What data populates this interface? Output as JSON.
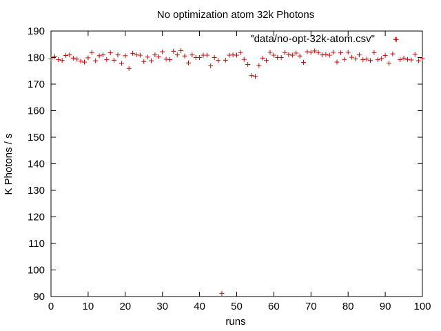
{
  "chart_data": {
    "type": "scatter",
    "title": "No optimization atom 32k Photons",
    "xlabel": "runs",
    "ylabel": "K Photons / s",
    "xlim": [
      0,
      100
    ],
    "ylim": [
      90,
      190
    ],
    "xticks": [
      0,
      10,
      20,
      30,
      40,
      50,
      60,
      70,
      80,
      90,
      100
    ],
    "yticks": [
      90,
      100,
      110,
      120,
      130,
      140,
      150,
      160,
      170,
      180,
      190
    ],
    "grid": false,
    "legend_position": "top-right",
    "marker_color": "#cc0000",
    "series": [
      {
        "name": "\"data/no-opt-32k-atom.csv\"",
        "marker": "+",
        "x": [
          0,
          1,
          2,
          3,
          4,
          5,
          6,
          7,
          8,
          9,
          10,
          11,
          12,
          13,
          14,
          15,
          16,
          17,
          18,
          19,
          20,
          21,
          22,
          23,
          24,
          25,
          26,
          27,
          28,
          29,
          30,
          31,
          32,
          33,
          34,
          35,
          36,
          37,
          38,
          39,
          40,
          41,
          42,
          43,
          44,
          45,
          46,
          47,
          48,
          49,
          50,
          51,
          52,
          53,
          54,
          55,
          56,
          57,
          58,
          59,
          60,
          61,
          62,
          63,
          64,
          65,
          66,
          67,
          68,
          69,
          70,
          71,
          72,
          73,
          74,
          75,
          76,
          77,
          78,
          79,
          80,
          81,
          82,
          83,
          84,
          85,
          86,
          87,
          88,
          89,
          90,
          91,
          92,
          93,
          94,
          95,
          96,
          97,
          98,
          99,
          100
        ],
        "y": [
          179.5,
          180.4,
          179.2,
          178.9,
          180.8,
          181.0,
          179.8,
          179.4,
          178.7,
          178.3,
          179.9,
          181.9,
          178.8,
          180.7,
          181.0,
          179.2,
          181.8,
          179.0,
          181.0,
          177.8,
          180.7,
          175.9,
          181.6,
          181.0,
          180.9,
          178.5,
          180.2,
          178.8,
          181.0,
          180.3,
          182.2,
          179.4,
          179.2,
          182.4,
          181.0,
          182.6,
          180.6,
          178.0,
          181.0,
          180.0,
          180.0,
          180.9,
          180.9,
          176.9,
          180.0,
          178.9,
          91.2,
          179.0,
          180.9,
          181.0,
          180.9,
          181.9,
          179.3,
          177.4,
          173.2,
          172.9,
          177.0,
          179.8,
          178.9,
          182.0,
          180.9,
          180.0,
          180.0,
          181.9,
          181.1,
          180.9,
          181.7,
          180.6,
          178.2,
          182.2,
          182.0,
          182.5,
          181.9,
          181.0,
          181.2,
          180.9,
          182.0,
          178.3,
          181.8,
          179.3,
          182.0,
          180.1,
          179.5,
          181.0,
          179.2,
          179.4,
          178.9,
          181.9,
          179.2,
          179.6,
          180.8,
          177.9,
          181.4,
          186.8,
          179.2,
          179.8,
          179.3,
          179.1,
          181.2,
          178.8,
          179.6
        ]
      }
    ]
  }
}
